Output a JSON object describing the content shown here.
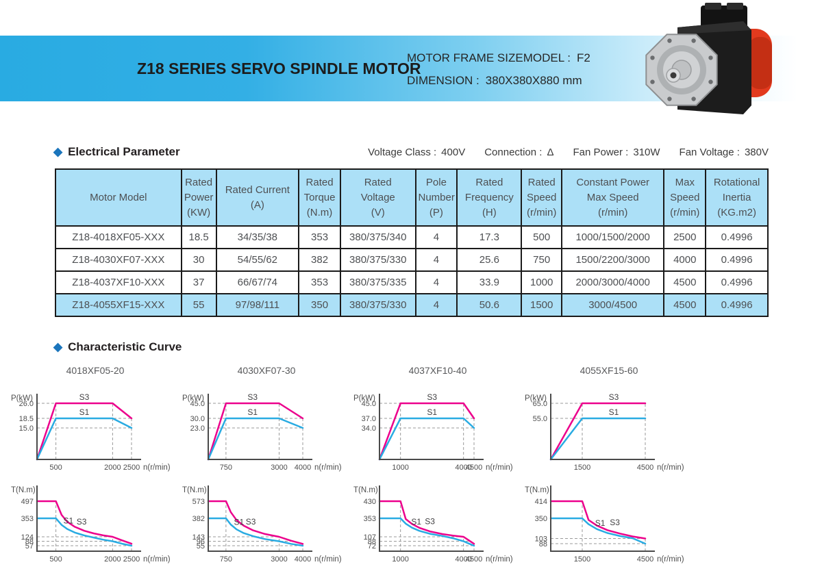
{
  "header": {
    "title": "Z18 SERIES SERVO SPINDLE MOTOR",
    "frame_label": "MOTOR FRAME SIZEMODEL :",
    "frame_value": "F2",
    "dimension_label": "DIMENSION :",
    "dimension_value": "380X380X880 mm"
  },
  "colors": {
    "accent_cyan": "#29ABE2",
    "curve_magenta": "#EC008C",
    "curve_cyan": "#29ABE2",
    "table_fill": "#ACE0F7",
    "diamond_blue": "#1B75BC"
  },
  "electrical": {
    "section_title": "Electrical Parameter",
    "specs": [
      {
        "label": "Voltage Class :",
        "value": "400V"
      },
      {
        "label": "Connection :",
        "value": "Δ"
      },
      {
        "label": "Fan Power :",
        "value": "310W"
      },
      {
        "label": "Fan Voltage :",
        "value": "380V"
      }
    ],
    "table": {
      "columns": [
        "Motor Model",
        "Rated\nPower\n(KW)",
        "Rated Current\n(A)",
        "Rated\nTorque\n(N.m)",
        "Rated\nVoltage\n(V)",
        "Pole\nNumber\n(P)",
        "Rated\nFrequency\n(H)",
        "Rated\nSpeed\n(r/min)",
        "Constant Power\nMax Speed\n(r/min)",
        "Max\nSpeed\n(r/min)",
        "Rotational\nInertia\n(KG.m2)"
      ],
      "rows": [
        [
          "Z18-4018XF05-XXX",
          "18.5",
          "34/35/38",
          "353",
          "380/375/340",
          "4",
          "17.3",
          "500",
          "1000/1500/2000",
          "2500",
          "0.4996"
        ],
        [
          "Z18-4030XF07-XXX",
          "30",
          "54/55/62",
          "382",
          "380/375/330",
          "4",
          "25.6",
          "750",
          "1500/2200/3000",
          "4000",
          "0.4996"
        ],
        [
          "Z18-4037XF10-XXX",
          "37",
          "66/67/74",
          "353",
          "380/375/335",
          "4",
          "33.9",
          "1000",
          "2000/3000/4000",
          "4500",
          "0.4996"
        ],
        [
          "Z18-4055XF15-XXX",
          "55",
          "97/98/111",
          "350",
          "380/375/330",
          "4",
          "50.6",
          "1500",
          "3000/4500",
          "4500",
          "0.4996"
        ]
      ],
      "highlighted_row": 3
    }
  },
  "curves": {
    "section_title": "Characteristic Curve",
    "chart_titles": [
      "4018XF05-20",
      "4030XF07-30",
      "4037XF10-40",
      "4055XF15-60"
    ]
  },
  "chart_data": [
    {
      "type": "power",
      "title": "4018XF05-20",
      "ylabel": "P(kW)",
      "xlabel": "n(r/min)",
      "yticks": [
        {
          "label": "26.0",
          "value": 26,
          "dashed": true
        },
        {
          "label": "18.5",
          "value": 18.5,
          "dashed": true
        },
        {
          "label": "15.0",
          "value": 15,
          "dashed": true
        }
      ],
      "xticks": [
        {
          "label": "500",
          "value": 500
        },
        {
          "label": "2000",
          "value": 2000
        },
        {
          "label": "2500",
          "value": 2500
        }
      ],
      "series": [
        {
          "name": "S3",
          "color": "#EC008C",
          "points": [
            [
              0,
              0
            ],
            [
              500,
              26
            ],
            [
              2000,
              26
            ],
            [
              2500,
              18.5
            ]
          ],
          "label_at": {
            "x": 1250,
            "y": 26
          }
        },
        {
          "name": "S1",
          "color": "#29ABE2",
          "points": [
            [
              0,
              0
            ],
            [
              500,
              18.5
            ],
            [
              2000,
              18.5
            ],
            [
              2500,
              15
            ]
          ],
          "label_at": {
            "x": 1250,
            "y": 18.5
          }
        }
      ]
    },
    {
      "type": "power",
      "title": "4030XF07-30",
      "ylabel": "P(kW)",
      "xlabel": "n(r/min)",
      "yticks": [
        {
          "label": "45.0",
          "value": 45,
          "dashed": true
        },
        {
          "label": "30.0",
          "value": 30,
          "dashed": true
        },
        {
          "label": "23.0",
          "value": 23,
          "dashed": true
        }
      ],
      "xticks": [
        {
          "label": "750",
          "value": 750
        },
        {
          "label": "3000",
          "value": 3000
        },
        {
          "label": "4000",
          "value": 4000
        }
      ],
      "series": [
        {
          "name": "S3",
          "color": "#EC008C",
          "points": [
            [
              0,
              0
            ],
            [
              750,
              45
            ],
            [
              3000,
              45
            ],
            [
              4000,
              30
            ]
          ],
          "label_at": {
            "x": 1875,
            "y": 45
          }
        },
        {
          "name": "S1",
          "color": "#29ABE2",
          "points": [
            [
              0,
              0
            ],
            [
              750,
              30
            ],
            [
              3000,
              30
            ],
            [
              4000,
              23
            ]
          ],
          "label_at": {
            "x": 1875,
            "y": 30
          }
        }
      ]
    },
    {
      "type": "power",
      "title": "4037XF10-40",
      "ylabel": "P(kW)",
      "xlabel": "n(r/min)",
      "yticks": [
        {
          "label": "45.0",
          "value": 45,
          "dashed": true
        },
        {
          "label": "37.0",
          "value": 37,
          "dashed": true
        },
        {
          "label": "34.0",
          "value": 34,
          "dashed": true
        }
      ],
      "xticks": [
        {
          "label": "1000",
          "value": 1000
        },
        {
          "label": "4000",
          "value": 4000
        },
        {
          "label": "4500",
          "value": 4500
        }
      ],
      "series": [
        {
          "name": "S3",
          "color": "#EC008C",
          "points": [
            [
              0,
              0
            ],
            [
              1000,
              45
            ],
            [
              4000,
              45
            ],
            [
              4500,
              37
            ]
          ],
          "label_at": {
            "x": 2500,
            "y": 45
          }
        },
        {
          "name": "S1",
          "color": "#29ABE2",
          "points": [
            [
              0,
              0
            ],
            [
              1000,
              37
            ],
            [
              4000,
              37
            ],
            [
              4500,
              34
            ]
          ],
          "label_at": {
            "x": 2500,
            "y": 37
          }
        }
      ]
    },
    {
      "type": "power",
      "title": "4055XF15-60",
      "ylabel": "P(kW)",
      "xlabel": "n(r/min)",
      "yticks": [
        {
          "label": "65.0",
          "value": 65,
          "dashed": true
        },
        {
          "label": "55.0",
          "value": 55,
          "dashed": true
        }
      ],
      "xticks": [
        {
          "label": "1500",
          "value": 1500
        },
        {
          "label": "4500",
          "value": 4500
        }
      ],
      "series": [
        {
          "name": "S3",
          "color": "#EC008C",
          "points": [
            [
              0,
              0
            ],
            [
              1500,
              65
            ],
            [
              4500,
              65
            ]
          ],
          "label_at": {
            "x": 3000,
            "y": 65
          }
        },
        {
          "name": "S1",
          "color": "#29ABE2",
          "points": [
            [
              0,
              0
            ],
            [
              1500,
              55
            ],
            [
              4500,
              55
            ]
          ],
          "label_at": {
            "x": 3000,
            "y": 55
          }
        }
      ]
    },
    {
      "type": "torque",
      "title": "4018XF05-20",
      "ylabel": "T(N.m)",
      "xlabel": "n(r/min)",
      "yticks": [
        {
          "label": "497",
          "value": 497,
          "dashed": false
        },
        {
          "label": "353",
          "value": 353,
          "dashed": false
        },
        {
          "label": "124",
          "value": 124,
          "dashed": true
        },
        {
          "label": "88",
          "value": 88,
          "dashed": true
        },
        {
          "label": "57",
          "value": 57,
          "dashed": true
        }
      ],
      "xticks": [
        {
          "label": "500",
          "value": 500
        },
        {
          "label": "2000",
          "value": 2000
        },
        {
          "label": "2500",
          "value": 2500
        }
      ],
      "series": [
        {
          "name": "S3",
          "color": "#EC008C",
          "points": [
            [
              0,
              497
            ],
            [
              500,
              497
            ],
            [
              650,
              382
            ],
            [
              800,
              310
            ],
            [
              1000,
              248
            ],
            [
              1250,
              199
            ],
            [
              1500,
              166
            ],
            [
              1750,
              142
            ],
            [
              2000,
              124
            ],
            [
              2250,
              95
            ],
            [
              2500,
              71
            ]
          ],
          "label_at": {
            "x": 1180,
            "y": 235
          }
        },
        {
          "name": "S1",
          "color": "#29ABE2",
          "points": [
            [
              0,
              353
            ],
            [
              500,
              353
            ],
            [
              650,
              272
            ],
            [
              800,
              221
            ],
            [
              1000,
              177
            ],
            [
              1250,
              141
            ],
            [
              1500,
              118
            ],
            [
              1750,
              101
            ],
            [
              2000,
              88
            ],
            [
              2250,
              71
            ],
            [
              2500,
              57
            ]
          ],
          "label_at": {
            "x": 830,
            "y": 245
          }
        }
      ]
    },
    {
      "type": "torque",
      "title": "4030XF07-30",
      "ylabel": "T(N.m)",
      "xlabel": "n(r/min)",
      "yticks": [
        {
          "label": "573",
          "value": 573,
          "dashed": false
        },
        {
          "label": "382",
          "value": 382,
          "dashed": false
        },
        {
          "label": "143",
          "value": 143,
          "dashed": true
        },
        {
          "label": "96",
          "value": 96,
          "dashed": true
        },
        {
          "label": "55",
          "value": 55,
          "dashed": true
        }
      ],
      "xticks": [
        {
          "label": "750",
          "value": 750
        },
        {
          "label": "3000",
          "value": 3000
        },
        {
          "label": "4000",
          "value": 4000
        }
      ],
      "series": [
        {
          "name": "S3",
          "color": "#EC008C",
          "points": [
            [
              0,
              573
            ],
            [
              750,
              573
            ],
            [
              950,
              452
            ],
            [
              1200,
              358
            ],
            [
              1500,
              287
            ],
            [
              1900,
              226
            ],
            [
              2400,
              179
            ],
            [
              3000,
              143
            ],
            [
              3500,
              102
            ],
            [
              4000,
              72
            ]
          ],
          "label_at": {
            "x": 1800,
            "y": 260
          }
        },
        {
          "name": "S1",
          "color": "#29ABE2",
          "points": [
            [
              0,
              382
            ],
            [
              750,
              382
            ],
            [
              950,
              302
            ],
            [
              1200,
              239
            ],
            [
              1500,
              191
            ],
            [
              1900,
              151
            ],
            [
              2400,
              119
            ],
            [
              3000,
              96
            ],
            [
              3500,
              72
            ],
            [
              4000,
              55
            ]
          ],
          "label_at": {
            "x": 1300,
            "y": 255
          }
        }
      ]
    },
    {
      "type": "torque",
      "title": "4037XF10-40",
      "ylabel": "T(N.m)",
      "xlabel": "n(r/min)",
      "yticks": [
        {
          "label": "430",
          "value": 430,
          "dashed": false
        },
        {
          "label": "353",
          "value": 353,
          "dashed": false
        },
        {
          "label": "107",
          "value": 107,
          "dashed": true
        },
        {
          "label": "88",
          "value": 88,
          "dashed": true
        },
        {
          "label": "72",
          "value": 72,
          "dashed": true
        }
      ],
      "xticks": [
        {
          "label": "1000",
          "value": 1000
        },
        {
          "label": "4000",
          "value": 4000
        },
        {
          "label": "4500",
          "value": 4500
        }
      ],
      "series": [
        {
          "name": "S3",
          "color": "#EC008C",
          "points": [
            [
              0,
              430
            ],
            [
              1000,
              430
            ],
            [
              1250,
              344
            ],
            [
              1550,
              277
            ],
            [
              1900,
              226
            ],
            [
              2400,
              179
            ],
            [
              3000,
              143
            ],
            [
              3500,
              123
            ],
            [
              4000,
              107
            ],
            [
              4250,
              92
            ],
            [
              4500,
              79
            ]
          ],
          "label_at": {
            "x": 2400,
            "y": 230
          }
        },
        {
          "name": "S1",
          "color": "#29ABE2",
          "points": [
            [
              0,
              353
            ],
            [
              1000,
              353
            ],
            [
              1250,
              282
            ],
            [
              1550,
              228
            ],
            [
              1900,
              186
            ],
            [
              2400,
              147
            ],
            [
              3000,
              118
            ],
            [
              3500,
              101
            ],
            [
              4000,
              88
            ],
            [
              4250,
              80
            ],
            [
              4500,
              72
            ]
          ],
          "label_at": {
            "x": 1750,
            "y": 225
          }
        }
      ]
    },
    {
      "type": "torque",
      "title": "4055XF15-60",
      "ylabel": "T(N.m)",
      "xlabel": "n(r/min)",
      "yticks": [
        {
          "label": "414",
          "value": 414,
          "dashed": false
        },
        {
          "label": "350",
          "value": 350,
          "dashed": false
        },
        {
          "label": "103",
          "value": 103,
          "dashed": true
        },
        {
          "label": "88",
          "value": 88,
          "dashed": true
        }
      ],
      "xticks": [
        {
          "label": "1500",
          "value": 1500
        },
        {
          "label": "4500",
          "value": 4500
        }
      ],
      "series": [
        {
          "name": "S3",
          "color": "#EC008C",
          "points": [
            [
              0,
              414
            ],
            [
              1500,
              414
            ],
            [
              1800,
              330
            ],
            [
              2200,
              260
            ],
            [
              2700,
              205
            ],
            [
              3300,
              163
            ],
            [
              3900,
              128
            ],
            [
              4500,
              103
            ]
          ],
          "label_at": {
            "x": 3050,
            "y": 225
          }
        },
        {
          "name": "S1",
          "color": "#29ABE2",
          "points": [
            [
              0,
              350
            ],
            [
              1500,
              350
            ],
            [
              1800,
              278
            ],
            [
              2200,
              218
            ],
            [
              2700,
              170
            ],
            [
              3300,
              133
            ],
            [
              3900,
              106
            ],
            [
              4500,
              88
            ]
          ],
          "label_at": {
            "x": 2350,
            "y": 215
          }
        }
      ]
    }
  ]
}
